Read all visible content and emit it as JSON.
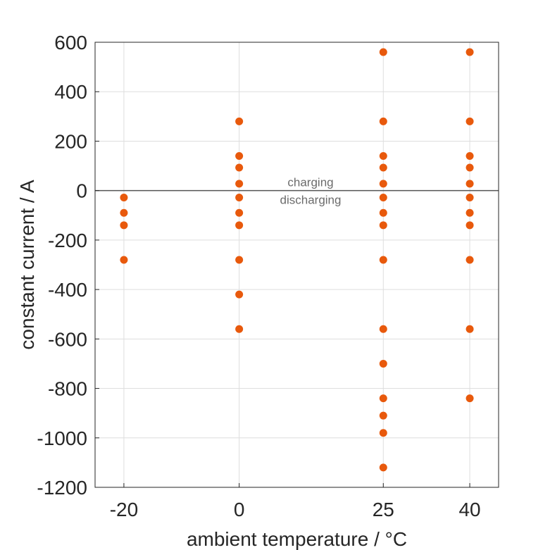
{
  "chart_data": {
    "type": "scatter",
    "title": "",
    "xlabel": "ambient temperature / °C",
    "ylabel": "constant current / A",
    "x_ticks": [
      -20,
      0,
      25,
      40
    ],
    "y_ticks": [
      600,
      400,
      200,
      0,
      -200,
      -400,
      -600,
      -800,
      -1000,
      -1200
    ],
    "xlim": [
      -25,
      45
    ],
    "ylim": [
      -1200,
      600
    ],
    "grid": true,
    "marker_color": "#e8590c",
    "reference_line": {
      "y": 0,
      "above_label": "charging",
      "below_label": "discharging"
    },
    "series": [
      {
        "points": [
          {
            "x": -20,
            "y": -28
          },
          {
            "x": -20,
            "y": -90
          },
          {
            "x": -20,
            "y": -140
          },
          {
            "x": -20,
            "y": -280
          },
          {
            "x": 0,
            "y": 280
          },
          {
            "x": 0,
            "y": 140
          },
          {
            "x": 0,
            "y": 93
          },
          {
            "x": 0,
            "y": 28
          },
          {
            "x": 0,
            "y": -28
          },
          {
            "x": 0,
            "y": -90
          },
          {
            "x": 0,
            "y": -140
          },
          {
            "x": 0,
            "y": -280
          },
          {
            "x": 0,
            "y": -420
          },
          {
            "x": 0,
            "y": -560
          },
          {
            "x": 25,
            "y": 560
          },
          {
            "x": 25,
            "y": 280
          },
          {
            "x": 25,
            "y": 140
          },
          {
            "x": 25,
            "y": 93
          },
          {
            "x": 25,
            "y": 28
          },
          {
            "x": 25,
            "y": -28
          },
          {
            "x": 25,
            "y": -90
          },
          {
            "x": 25,
            "y": -140
          },
          {
            "x": 25,
            "y": -280
          },
          {
            "x": 25,
            "y": -560
          },
          {
            "x": 25,
            "y": -700
          },
          {
            "x": 25,
            "y": -840
          },
          {
            "x": 25,
            "y": -910
          },
          {
            "x": 25,
            "y": -980
          },
          {
            "x": 25,
            "y": -1120
          },
          {
            "x": 40,
            "y": 560
          },
          {
            "x": 40,
            "y": 280
          },
          {
            "x": 40,
            "y": 140
          },
          {
            "x": 40,
            "y": 93
          },
          {
            "x": 40,
            "y": 28
          },
          {
            "x": 40,
            "y": -28
          },
          {
            "x": 40,
            "y": -90
          },
          {
            "x": 40,
            "y": -140
          },
          {
            "x": 40,
            "y": -280
          },
          {
            "x": 40,
            "y": -560
          },
          {
            "x": 40,
            "y": -840
          }
        ]
      }
    ]
  }
}
